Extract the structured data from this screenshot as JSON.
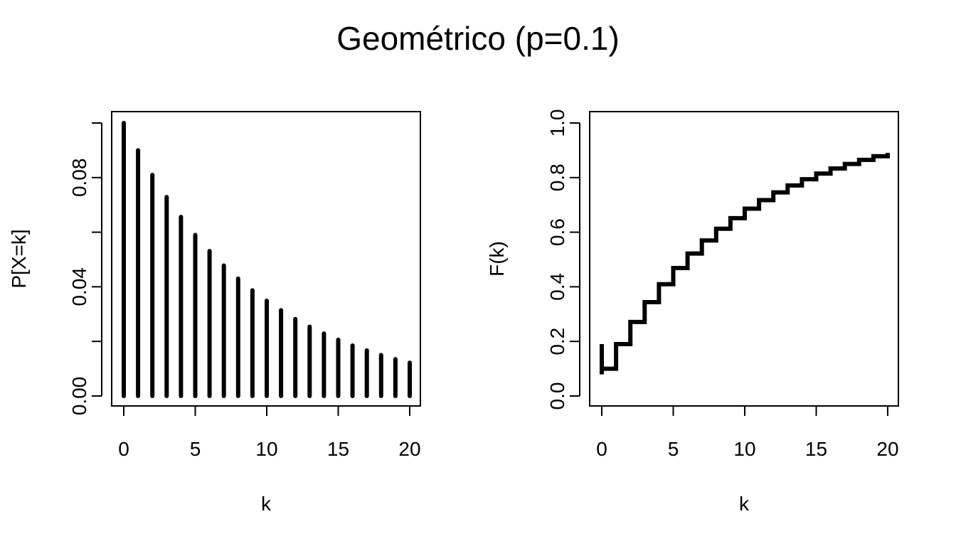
{
  "figure": {
    "title": "Geométrico (p=0.1)"
  },
  "chart_data": [
    {
      "type": "bar",
      "name": "pmf",
      "xlabel": "k",
      "ylabel": "P[X=k]",
      "xlim": [
        0,
        20
      ],
      "ylim": [
        0,
        0.1
      ],
      "x_ticks": [
        0,
        5,
        10,
        15,
        20
      ],
      "y_ticks": [
        0,
        0.02,
        0.04,
        0.06,
        0.08,
        0.1
      ],
      "y_tick_labels": [
        "0.00",
        "",
        "0.04",
        "",
        "0.08",
        ""
      ],
      "grid": false,
      "x": [
        0,
        1,
        2,
        3,
        4,
        5,
        6,
        7,
        8,
        9,
        10,
        11,
        12,
        13,
        14,
        15,
        16,
        17,
        18,
        19,
        20
      ],
      "values": [
        0.1,
        0.09,
        0.081,
        0.0729,
        0.0656,
        0.059,
        0.0531,
        0.0478,
        0.043,
        0.0387,
        0.0349,
        0.0314,
        0.0282,
        0.0254,
        0.0229,
        0.0206,
        0.0185,
        0.0167,
        0.015,
        0.0135,
        0.0122
      ],
      "color": "#000000"
    },
    {
      "type": "line",
      "name": "cdf",
      "step": true,
      "xlabel": "k",
      "ylabel": "F(k)",
      "xlim": [
        0,
        20
      ],
      "ylim": [
        0,
        1
      ],
      "x_ticks": [
        0,
        5,
        10,
        15,
        20
      ],
      "y_ticks": [
        0,
        0.2,
        0.4,
        0.6,
        0.8,
        1.0
      ],
      "y_tick_labels": [
        "0.0",
        "0.2",
        "0.4",
        "0.6",
        "0.8",
        "1.0"
      ],
      "grid": false,
      "x": [
        0,
        1,
        2,
        3,
        4,
        5,
        6,
        7,
        8,
        9,
        10,
        11,
        12,
        13,
        14,
        15,
        16,
        17,
        18,
        19,
        20
      ],
      "values": [
        0.1,
        0.19,
        0.271,
        0.3439,
        0.4095,
        0.4686,
        0.5217,
        0.5695,
        0.6126,
        0.6513,
        0.6862,
        0.7176,
        0.7458,
        0.7712,
        0.7941,
        0.8147,
        0.8332,
        0.8499,
        0.8649,
        0.8784,
        0.8906
      ],
      "color": "#000000"
    }
  ]
}
